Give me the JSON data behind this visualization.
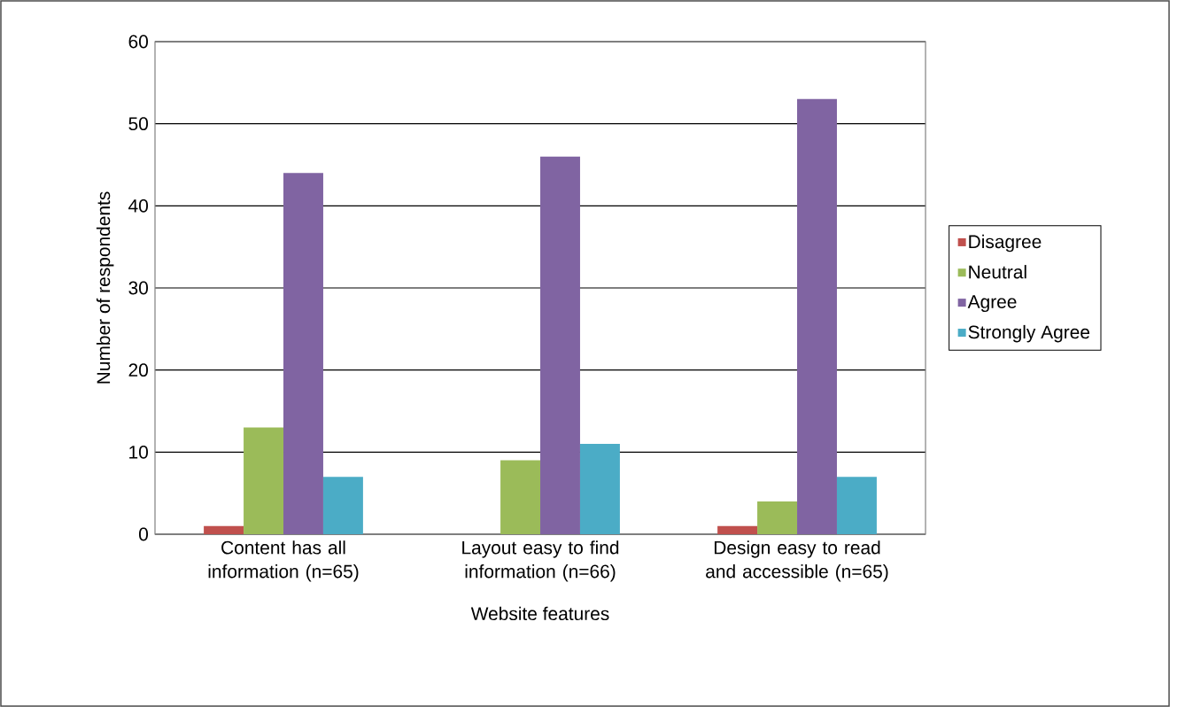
{
  "chart_data": {
    "type": "bar",
    "xlabel": "Website features",
    "ylabel": "Number of respondents",
    "categories": [
      "Content has all information (n=65)",
      "Layout easy to find information (n=66)",
      "Design easy to read and accessible (n=65)"
    ],
    "series": [
      {
        "name": "Disagree",
        "color": "#c0504d",
        "values": [
          1,
          0,
          1
        ]
      },
      {
        "name": "Neutral",
        "color": "#9bbb59",
        "values": [
          13,
          9,
          4
        ]
      },
      {
        "name": "Agree",
        "color": "#8064a2",
        "values": [
          44,
          46,
          53
        ]
      },
      {
        "name": "Strongly Agree",
        "color": "#4bacc6",
        "values": [
          7,
          11,
          7
        ]
      }
    ],
    "ylim": [
      0,
      60
    ],
    "yticks": [
      0,
      10,
      20,
      30,
      40,
      50,
      60
    ],
    "grid": "y",
    "legend": "right"
  }
}
